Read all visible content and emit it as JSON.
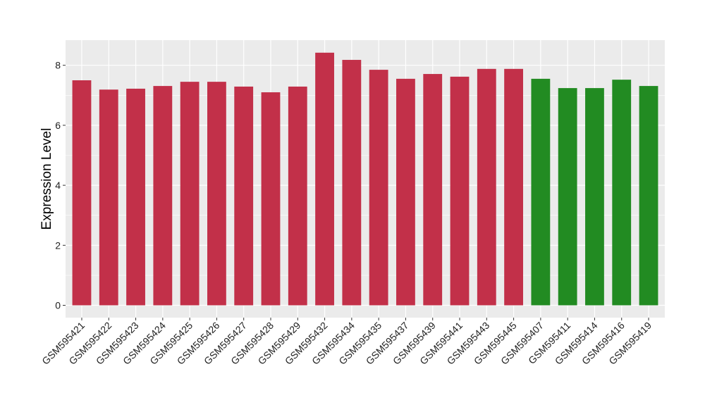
{
  "chart_data": {
    "type": "bar",
    "title": "",
    "xlabel": "",
    "ylabel": "Expression Level",
    "ylim": [
      0,
      8.8
    ],
    "yticks": [
      0,
      2,
      4,
      6,
      8
    ],
    "grid": true,
    "legend": "none",
    "categories": [
      "GSM595421",
      "GSM595422",
      "GSM595423",
      "GSM595424",
      "GSM595425",
      "GSM595426",
      "GSM595427",
      "GSM595428",
      "GSM595429",
      "GSM595432",
      "GSM595434",
      "GSM595435",
      "GSM595437",
      "GSM595439",
      "GSM595441",
      "GSM595443",
      "GSM595445",
      "GSM595407",
      "GSM595411",
      "GSM595414",
      "GSM595416",
      "GSM595419"
    ],
    "values": [
      7.5,
      7.19,
      7.22,
      7.31,
      7.45,
      7.45,
      7.29,
      7.1,
      7.29,
      8.42,
      8.18,
      7.85,
      7.55,
      7.71,
      7.62,
      7.88,
      7.88,
      7.55,
      7.24,
      7.24,
      7.52,
      7.31
    ],
    "groups": [
      "a",
      "a",
      "a",
      "a",
      "a",
      "a",
      "a",
      "a",
      "a",
      "a",
      "a",
      "a",
      "a",
      "a",
      "a",
      "a",
      "a",
      "b",
      "b",
      "b",
      "b",
      "b"
    ],
    "group_colors": {
      "a": "#C23049",
      "b": "#228B22"
    },
    "panel_background": "#EBEBEB"
  }
}
